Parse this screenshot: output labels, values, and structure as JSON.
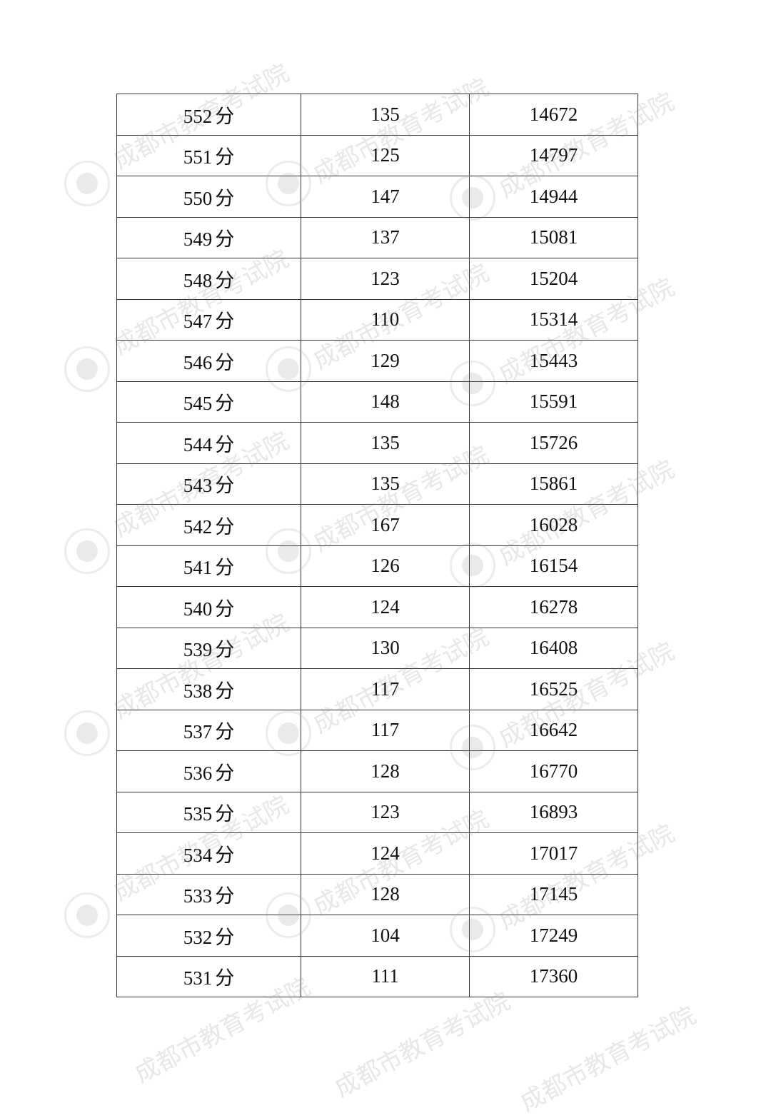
{
  "watermark": {
    "text": "成都市教育考试院",
    "color": "#b4b4b4"
  },
  "unit": "分",
  "rows": [
    {
      "score": "552",
      "count": "135",
      "cumulative": "14672"
    },
    {
      "score": "551",
      "count": "125",
      "cumulative": "14797"
    },
    {
      "score": "550",
      "count": "147",
      "cumulative": "14944"
    },
    {
      "score": "549",
      "count": "137",
      "cumulative": "15081"
    },
    {
      "score": "548",
      "count": "123",
      "cumulative": "15204"
    },
    {
      "score": "547",
      "count": "110",
      "cumulative": "15314"
    },
    {
      "score": "546",
      "count": "129",
      "cumulative": "15443"
    },
    {
      "score": "545",
      "count": "148",
      "cumulative": "15591"
    },
    {
      "score": "544",
      "count": "135",
      "cumulative": "15726"
    },
    {
      "score": "543",
      "count": "135",
      "cumulative": "15861"
    },
    {
      "score": "542",
      "count": "167",
      "cumulative": "16028"
    },
    {
      "score": "541",
      "count": "126",
      "cumulative": "16154"
    },
    {
      "score": "540",
      "count": "124",
      "cumulative": "16278"
    },
    {
      "score": "539",
      "count": "130",
      "cumulative": "16408"
    },
    {
      "score": "538",
      "count": "117",
      "cumulative": "16525"
    },
    {
      "score": "537",
      "count": "117",
      "cumulative": "16642"
    },
    {
      "score": "536",
      "count": "128",
      "cumulative": "16770"
    },
    {
      "score": "535",
      "count": "123",
      "cumulative": "16893"
    },
    {
      "score": "534",
      "count": "124",
      "cumulative": "17017"
    },
    {
      "score": "533",
      "count": "128",
      "cumulative": "17145"
    },
    {
      "score": "532",
      "count": "104",
      "cumulative": "17249"
    },
    {
      "score": "531",
      "count": "111",
      "cumulative": "17360"
    }
  ]
}
